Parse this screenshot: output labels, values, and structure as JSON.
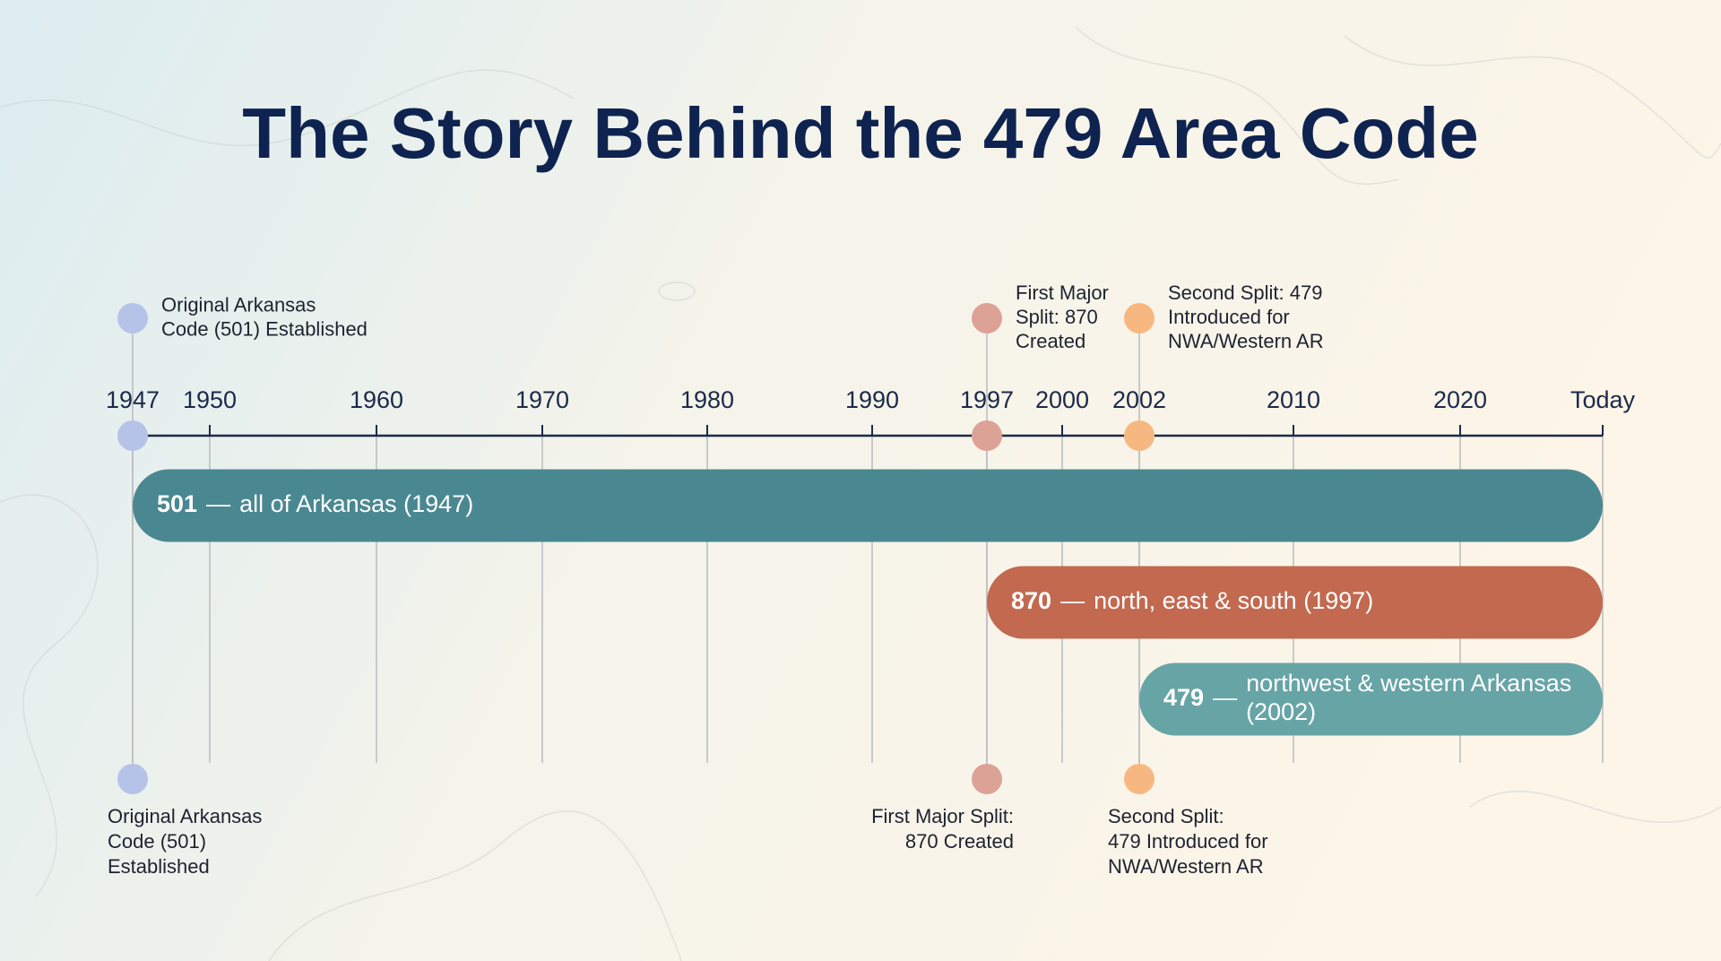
{
  "chart_data": {
    "type": "timeline",
    "title": "The Story Behind the 479 Area Code",
    "xlim": [
      1947,
      2025
    ],
    "xticks": [
      1947,
      1950,
      1960,
      1970,
      1980,
      1990,
      1997,
      2000,
      2002,
      2010,
      2020,
      {
        "value": 2025,
        "label": "Today"
      }
    ],
    "grid": true,
    "axis_color": "#1b2a4a",
    "events": [
      {
        "year": 1947,
        "color": "#b6c3e8",
        "top_label": [
          "Original Arkansas",
          "Code (501) Established"
        ],
        "bottom_label": [
          "Original Arkansas",
          "Code (501)",
          "Established"
        ]
      },
      {
        "year": 1997,
        "color": "#dda296",
        "top_label": [
          "First Major",
          "Split: 870",
          "Created"
        ],
        "bottom_label": [
          "First Major Split:",
          "870 Created"
        ]
      },
      {
        "year": 2002,
        "color": "#f6b880",
        "top_label": [
          "Second Split: 479",
          "Introduced for",
          "NWA/Western AR"
        ],
        "bottom_label": [
          "Second Split:",
          "479 Introduced for",
          "NWA/Western AR"
        ]
      }
    ],
    "bars": [
      {
        "code": "501",
        "separator": "—",
        "label_lines": [
          "all of Arkansas (1947)"
        ],
        "start": 1947,
        "color": "#4a8891"
      },
      {
        "code": "870",
        "separator": "—",
        "label_lines": [
          "north, east & south (1997)"
        ],
        "start": 1997,
        "color": "#c2694f"
      },
      {
        "code": "479",
        "separator": "—",
        "label_lines": [
          "northwest & western Arkansas",
          "(2002)"
        ],
        "start": 2002,
        "color": "#67a4a6"
      }
    ]
  }
}
